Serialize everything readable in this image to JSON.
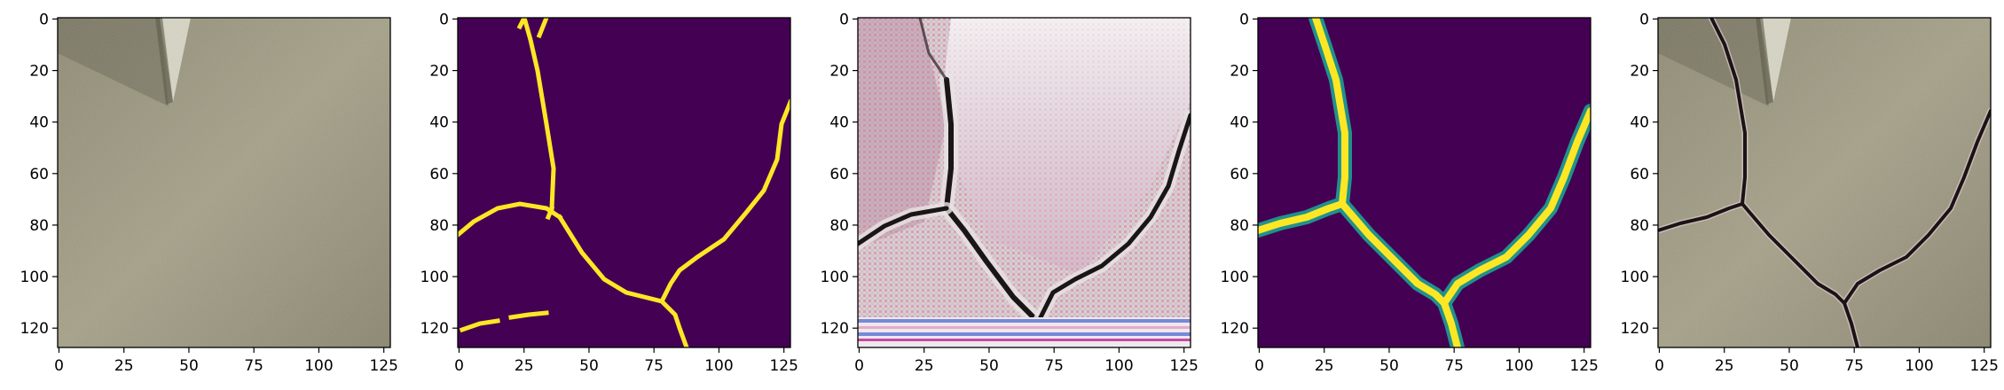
{
  "figure": {
    "panel_count": 5,
    "colors": {
      "frame": "#000000",
      "tick_label": "#000000",
      "background": "#ffffff",
      "viridis_low": "#440154",
      "viridis_mid": "#21918c",
      "viridis_high": "#fde725"
    },
    "panels": [
      {
        "content": "concrete-wall-photo",
        "x_ticks": [
          "0",
          "25",
          "50",
          "75",
          "100",
          "125"
        ],
        "y_ticks": [
          "0",
          "20",
          "40",
          "60",
          "80",
          "100",
          "120"
        ]
      },
      {
        "content": "binary-crack-mask",
        "x_ticks": [
          "0",
          "25",
          "50",
          "75",
          "100",
          "125"
        ],
        "y_ticks": [
          "0",
          "20",
          "40",
          "60",
          "80",
          "100",
          "120"
        ]
      },
      {
        "content": "generated-crack-texture",
        "x_ticks": [
          "0",
          "25",
          "50",
          "75",
          "100",
          "125"
        ],
        "y_ticks": [
          "0",
          "20",
          "40",
          "60",
          "80",
          "100",
          "120"
        ]
      },
      {
        "content": "smoothed-crack-mask",
        "x_ticks": [
          "0",
          "25",
          "50",
          "75",
          "100",
          "125"
        ],
        "y_ticks": [
          "0",
          "20",
          "40",
          "60",
          "80",
          "100",
          "120"
        ]
      },
      {
        "content": "wall-with-crack-composite",
        "x_ticks": [
          "0",
          "25",
          "50",
          "75",
          "100",
          "125"
        ],
        "y_ticks": [
          "0",
          "20",
          "40",
          "60",
          "80",
          "100",
          "120"
        ]
      }
    ]
  }
}
